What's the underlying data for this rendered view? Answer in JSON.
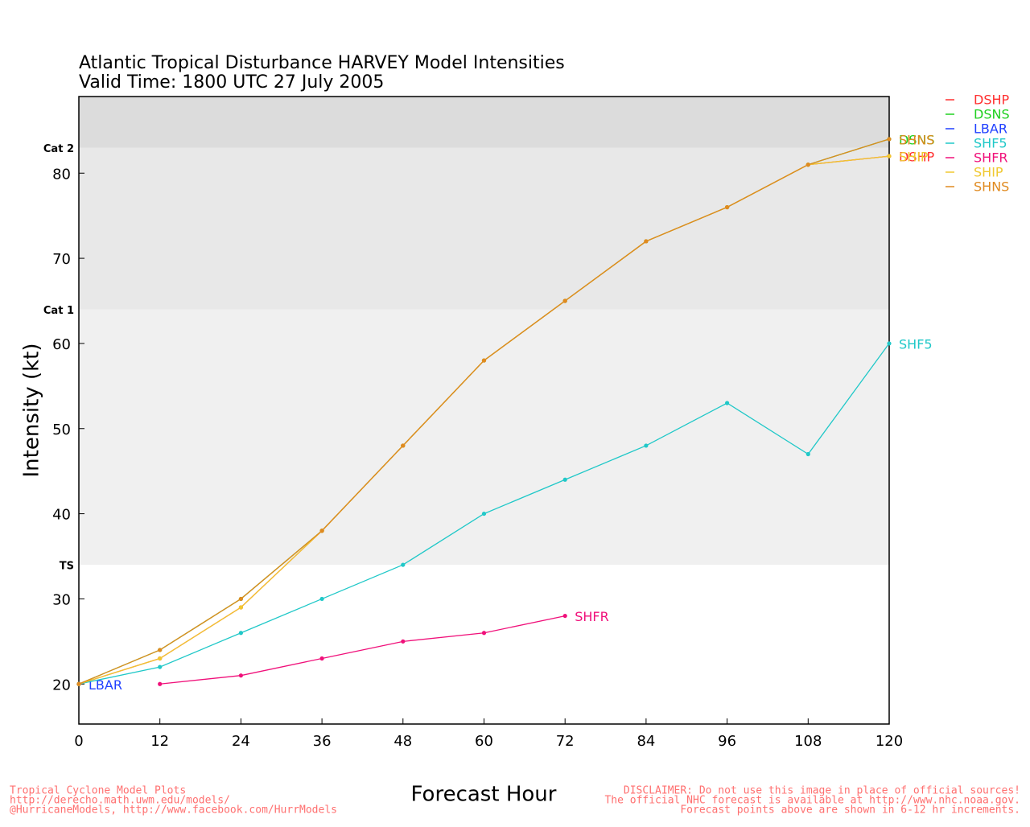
{
  "chart_data": {
    "type": "line",
    "title": "Atlantic Tropical Disturbance HARVEY Model Intensities",
    "subtitle": "Valid Time: 1800 UTC 27 July 2005",
    "x_label": "Forecast Hour",
    "y_label": "Intensity (kt)",
    "x": [
      0,
      12,
      24,
      36,
      48,
      60,
      72,
      84,
      96,
      108,
      120
    ],
    "xlim": [
      0,
      120
    ],
    "xticks": [
      0,
      12,
      24,
      36,
      48,
      60,
      72,
      84,
      96,
      108,
      120
    ],
    "ylim": [
      15.3,
      89
    ],
    "yticks": [
      20,
      30,
      40,
      50,
      60,
      70,
      80
    ],
    "thresholds": [
      {
        "label": "TS",
        "value": 34,
        "color": "#f0f0f0"
      },
      {
        "label": "Cat 1",
        "value": 64,
        "color": "#e8e8e8"
      },
      {
        "label": "Cat 2",
        "value": 83,
        "color": "#dcdcdc"
      }
    ],
    "legend": "top-right",
    "series": [
      {
        "name": "DSHP",
        "color": "#ff3030",
        "values": [
          20,
          23,
          29,
          38,
          48,
          58,
          65,
          72,
          76,
          81,
          82
        ]
      },
      {
        "name": "DSNS",
        "color": "#20d020",
        "values": [
          20,
          24,
          30,
          38,
          48,
          58,
          65,
          72,
          76,
          81,
          84
        ]
      },
      {
        "name": "LBAR",
        "color": "#2040ff",
        "values": [
          20,
          null,
          null,
          null,
          null,
          null,
          null,
          null,
          null,
          null,
          null
        ]
      },
      {
        "name": "SHF5",
        "color": "#20c8c8",
        "values": [
          20,
          22,
          26,
          30,
          34,
          40,
          44,
          48,
          53,
          47,
          60
        ]
      },
      {
        "name": "SHFR",
        "color": "#f0107a",
        "values": [
          null,
          20,
          21,
          23,
          25,
          26,
          28,
          null,
          null,
          null,
          null
        ]
      },
      {
        "name": "SHIP",
        "color": "#f0c830",
        "values": [
          20,
          23,
          29,
          38,
          48,
          58,
          65,
          72,
          76,
          81,
          82
        ]
      },
      {
        "name": "SHNS",
        "color": "#e08a20",
        "values": [
          20,
          24,
          30,
          38,
          48,
          58,
          65,
          72,
          76,
          81,
          84
        ]
      }
    ],
    "footer_left": [
      "Tropical Cyclone Model Plots",
      "http://derecho.math.uwm.edu/models/",
      "@HurricaneModels, http://www.facebook.com/HurrModels"
    ],
    "footer_right": [
      "DISCLAIMER: Do not use this image in place of official sources!",
      "The official NHC forecast is available at http://www.nhc.noaa.gov.",
      "Forecast points above are shown in 6-12 hr increments."
    ]
  }
}
